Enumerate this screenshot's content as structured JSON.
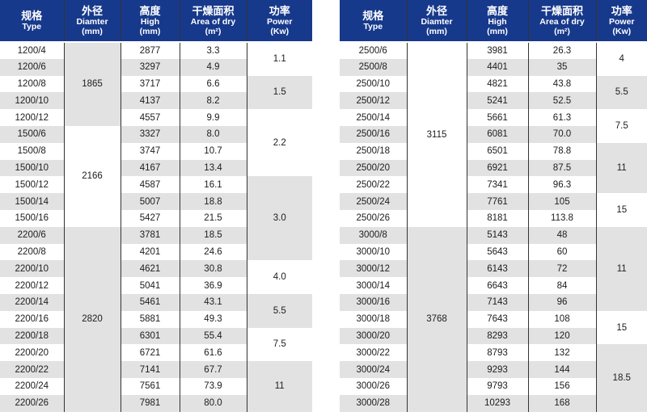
{
  "colors": {
    "header_bg": "#17398c",
    "stripe_gray": "#e2e2e2",
    "grid_line": "#333333",
    "body_text": "#1c1c1c",
    "header_text": "#ffffff"
  },
  "header": {
    "type": {
      "cn": "规格",
      "en": "Type"
    },
    "diameter": {
      "cn": "外径",
      "en": "Diamter",
      "unit": "(mm)"
    },
    "high": {
      "cn": "高度",
      "en": "High",
      "unit": "(mm)"
    },
    "area": {
      "cn": "干燥面积",
      "en": "Area of dry",
      "unit": "(m²)"
    },
    "power": {
      "cn": "功率",
      "en": "Power",
      "unit": "(Kw)"
    }
  },
  "tables": [
    {
      "rows": [
        {
          "type": "1200/4",
          "high": "2877",
          "area": "3.3"
        },
        {
          "type": "1200/6",
          "high": "3297",
          "area": "4.9"
        },
        {
          "type": "1200/8",
          "high": "3717",
          "area": "6.6"
        },
        {
          "type": "1200/10",
          "high": "4137",
          "area": "8.2"
        },
        {
          "type": "1200/12",
          "high": "4557",
          "area": "9.9"
        },
        {
          "type": "1500/6",
          "high": "3327",
          "area": "8.0"
        },
        {
          "type": "1500/8",
          "high": "3747",
          "area": "10.7"
        },
        {
          "type": "1500/10",
          "high": "4167",
          "area": "13.4"
        },
        {
          "type": "1500/12",
          "high": "4587",
          "area": "16.1"
        },
        {
          "type": "1500/14",
          "high": "5007",
          "area": "18.8"
        },
        {
          "type": "1500/16",
          "high": "5427",
          "area": "21.5"
        },
        {
          "type": "2200/6",
          "high": "3781",
          "area": "18.5"
        },
        {
          "type": "2200/8",
          "high": "4201",
          "area": "24.6"
        },
        {
          "type": "2200/10",
          "high": "4621",
          "area": "30.8"
        },
        {
          "type": "2200/12",
          "high": "5041",
          "area": "36.9"
        },
        {
          "type": "2200/14",
          "high": "5461",
          "area": "43.1"
        },
        {
          "type": "2200/16",
          "high": "5881",
          "area": "49.3"
        },
        {
          "type": "2200/18",
          "high": "6301",
          "area": "55.4"
        },
        {
          "type": "2200/20",
          "high": "6721",
          "area": "61.6"
        },
        {
          "type": "2200/22",
          "high": "7141",
          "area": "67.7"
        },
        {
          "type": "2200/24",
          "high": "7561",
          "area": "73.9"
        },
        {
          "type": "2200/26",
          "high": "7981",
          "area": "80.0"
        }
      ],
      "diameter_groups": [
        {
          "value": "1865",
          "span": 5,
          "shade": "gray"
        },
        {
          "value": "2166",
          "span": 6,
          "shade": "white"
        },
        {
          "value": "2820",
          "span": 11,
          "shade": "gray"
        }
      ],
      "power_groups": [
        {
          "value": "1.1",
          "span": 2,
          "shade": "white"
        },
        {
          "value": "1.5",
          "span": 2,
          "shade": "gray"
        },
        {
          "value": "2.2",
          "span": 4,
          "shade": "white"
        },
        {
          "value": "3.0",
          "span": 5,
          "shade": "gray"
        },
        {
          "value": "4.0",
          "span": 2,
          "shade": "white"
        },
        {
          "value": "5.5",
          "span": 2,
          "shade": "gray"
        },
        {
          "value": "7.5",
          "span": 2,
          "shade": "white"
        },
        {
          "value": "11",
          "span": 3,
          "shade": "gray"
        }
      ]
    },
    {
      "rows": [
        {
          "type": "2500/6",
          "high": "3981",
          "area": "26.3"
        },
        {
          "type": "2500/8",
          "high": "4401",
          "area": "35"
        },
        {
          "type": "2500/10",
          "high": "4821",
          "area": "43.8"
        },
        {
          "type": "2500/12",
          "high": "5241",
          "area": "52.5"
        },
        {
          "type": "2500/14",
          "high": "5661",
          "area": "61.3"
        },
        {
          "type": "2500/16",
          "high": "6081",
          "area": "70.0"
        },
        {
          "type": "2500/18",
          "high": "6501",
          "area": "78.8"
        },
        {
          "type": "2500/20",
          "high": "6921",
          "area": "87.5"
        },
        {
          "type": "2500/22",
          "high": "7341",
          "area": "96.3"
        },
        {
          "type": "2500/24",
          "high": "7761",
          "area": "105"
        },
        {
          "type": "2500/26",
          "high": "8181",
          "area": "113.8"
        },
        {
          "type": "3000/8",
          "high": "5143",
          "area": "48"
        },
        {
          "type": "3000/10",
          "high": "5643",
          "area": "60"
        },
        {
          "type": "3000/12",
          "high": "6143",
          "area": "72"
        },
        {
          "type": "3000/14",
          "high": "6643",
          "area": "84"
        },
        {
          "type": "3000/16",
          "high": "7143",
          "area": "96"
        },
        {
          "type": "3000/18",
          "high": "7643",
          "area": "108"
        },
        {
          "type": "3000/20",
          "high": "8293",
          "area": "120"
        },
        {
          "type": "3000/22",
          "high": "8793",
          "area": "132"
        },
        {
          "type": "3000/24",
          "high": "9293",
          "area": "144"
        },
        {
          "type": "3000/26",
          "high": "9793",
          "area": "156"
        },
        {
          "type": "3000/28",
          "high": "10293",
          "area": "168"
        }
      ],
      "diameter_groups": [
        {
          "value": "3115",
          "span": 11,
          "shade": "white"
        },
        {
          "value": "3768",
          "span": 11,
          "shade": "gray"
        }
      ],
      "power_groups": [
        {
          "value": "4",
          "span": 2,
          "shade": "white"
        },
        {
          "value": "5.5",
          "span": 2,
          "shade": "gray"
        },
        {
          "value": "7.5",
          "span": 2,
          "shade": "white"
        },
        {
          "value": "11",
          "span": 3,
          "shade": "gray"
        },
        {
          "value": "15",
          "span": 2,
          "shade": "white"
        },
        {
          "value": "11",
          "span": 5,
          "shade": "gray"
        },
        {
          "value": "15",
          "span": 2,
          "shade": "white"
        },
        {
          "value": "18.5",
          "span": 4,
          "shade": "gray"
        }
      ]
    }
  ]
}
